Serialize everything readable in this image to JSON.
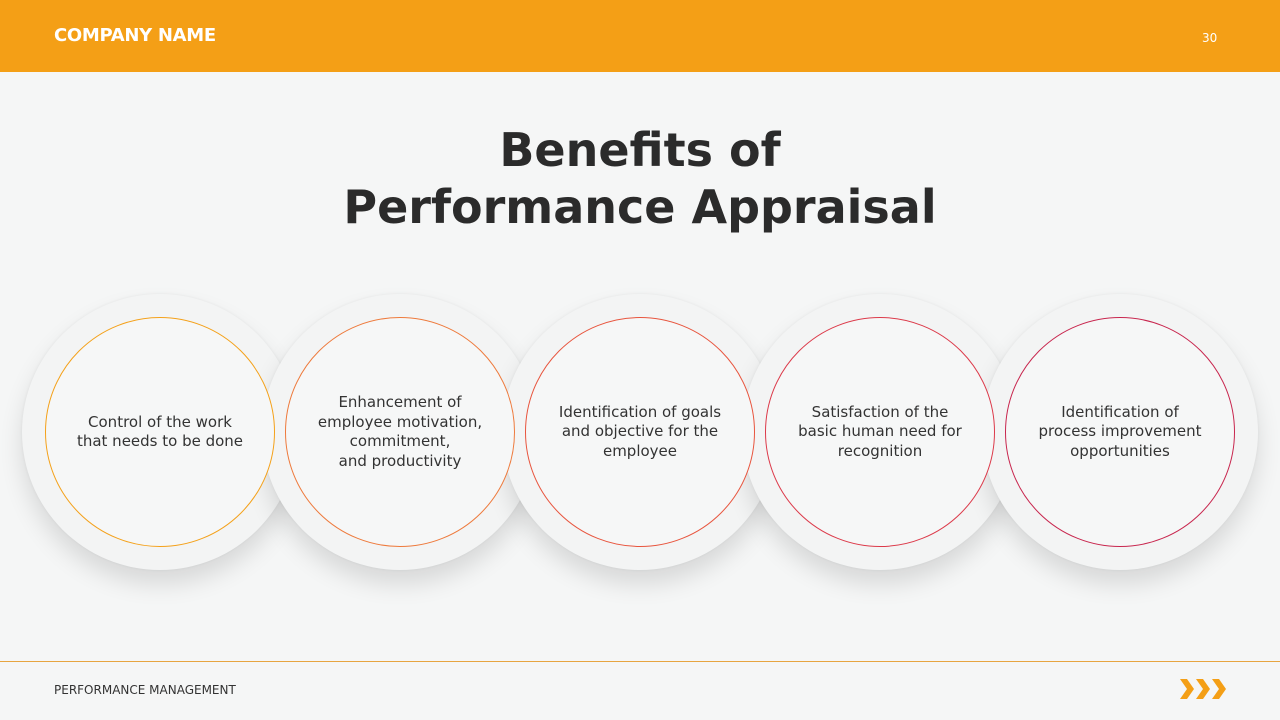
{
  "header": {
    "company": "COMPANY NAME",
    "page_number": "30"
  },
  "title": "Benefits of\nPerformance Appraisal",
  "benefits": [
    {
      "text": "Control of the work\nthat needs to be done",
      "color": "#f4a11a"
    },
    {
      "text": "Enhancement of\nemployee motivation,\ncommitment,\nand productivity",
      "color": "#ee7a3c"
    },
    {
      "text": "Identification of goals\nand objective for the\nemployee",
      "color": "#e8553e"
    },
    {
      "text": "Satisfaction of the\nbasic human need for\nrecognition",
      "color": "#dc3a4a"
    },
    {
      "text": "Identification of\nprocess improvement\nopportunities",
      "color": "#c8264e"
    }
  ],
  "footer": {
    "label": "PERFORMANCE MANAGEMENT",
    "icon": "triple-chevron-right-icon",
    "accent": "#f49f16"
  }
}
